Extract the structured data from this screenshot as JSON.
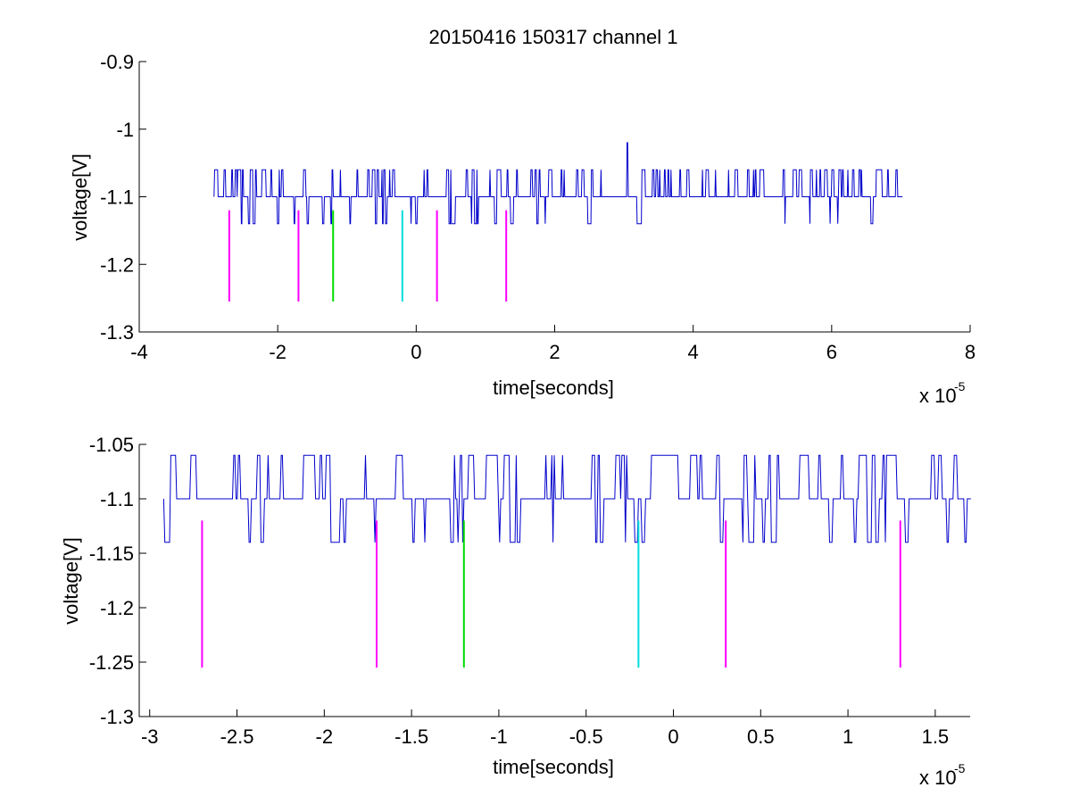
{
  "figure": {
    "title": "20150416 150317 channel 1"
  },
  "chart_data": [
    {
      "type": "line",
      "xlabel": "time[seconds]",
      "ylabel": "voltage[V]",
      "x_multiplier": "x 10",
      "x_exponent": "-5",
      "xlim": [
        -4,
        8
      ],
      "ylim": [
        -1.3,
        -0.9
      ],
      "xticks": [
        -4,
        -2,
        0,
        2,
        4,
        6,
        8
      ],
      "xtick_labels": [
        "-4",
        "-2",
        "0",
        "2",
        "4",
        "6",
        "8"
      ],
      "yticks": [
        -1.3,
        -1.2,
        -1.1,
        -1.0,
        -0.9
      ],
      "ytick_labels": [
        "-1.3",
        "-1.2",
        "-1.1",
        "-1",
        "-0.9"
      ],
      "grid": false,
      "signal": {
        "color": "#0000cc",
        "x_start": -2.92,
        "x_end": 7.02,
        "baseline": -1.1,
        "step": 0.04,
        "peak": {
          "x": 3.05,
          "y": -1.02
        }
      },
      "markers": [
        {
          "x": -2.7,
          "y_top": -1.12,
          "y_bottom": -1.255,
          "color": "#ff00ff"
        },
        {
          "x": -1.7,
          "y_top": -1.12,
          "y_bottom": -1.255,
          "color": "#ff00ff"
        },
        {
          "x": -1.2,
          "y_top": -1.12,
          "y_bottom": -1.255,
          "color": "#00dd00"
        },
        {
          "x": -0.2,
          "y_top": -1.12,
          "y_bottom": -1.255,
          "color": "#00dddd"
        },
        {
          "x": 0.3,
          "y_top": -1.12,
          "y_bottom": -1.255,
          "color": "#ff00ff"
        },
        {
          "x": 1.3,
          "y_top": -1.12,
          "y_bottom": -1.255,
          "color": "#ff00ff"
        }
      ]
    },
    {
      "type": "line",
      "xlabel": "time[seconds]",
      "ylabel": "voltage[V]",
      "x_multiplier": "x 10",
      "x_exponent": "-5",
      "xlim": [
        -3.06,
        1.7
      ],
      "ylim": [
        -1.3,
        -1.05
      ],
      "xticks": [
        -3,
        -2.5,
        -2,
        -1.5,
        -1,
        -0.5,
        0,
        0.5,
        1,
        1.5
      ],
      "xtick_labels": [
        "-3",
        "-2.5",
        "-2",
        "-1.5",
        "-1",
        "-0.5",
        "0",
        "0.5",
        "1",
        "1.5"
      ],
      "yticks": [
        -1.3,
        -1.25,
        -1.2,
        -1.15,
        -1.1,
        -1.05
      ],
      "ytick_labels": [
        "-1.3",
        "-1.25",
        "-1.2",
        "-1.15",
        "-1.1",
        "-1.05"
      ],
      "grid": false,
      "signal": {
        "color": "#0000cc",
        "x_start": -2.92,
        "x_end": 1.7,
        "baseline": -1.1,
        "step": 0.04
      },
      "markers": [
        {
          "x": -2.7,
          "y_top": -1.12,
          "y_bottom": -1.255,
          "color": "#ff00ff"
        },
        {
          "x": -1.7,
          "y_top": -1.12,
          "y_bottom": -1.255,
          "color": "#ff00ff"
        },
        {
          "x": -1.2,
          "y_top": -1.12,
          "y_bottom": -1.255,
          "color": "#00dd00"
        },
        {
          "x": -0.2,
          "y_top": -1.12,
          "y_bottom": -1.255,
          "color": "#00dddd"
        },
        {
          "x": 0.3,
          "y_top": -1.12,
          "y_bottom": -1.255,
          "color": "#ff00ff"
        },
        {
          "x": 1.3,
          "y_top": -1.12,
          "y_bottom": -1.255,
          "color": "#ff00ff"
        }
      ]
    }
  ]
}
